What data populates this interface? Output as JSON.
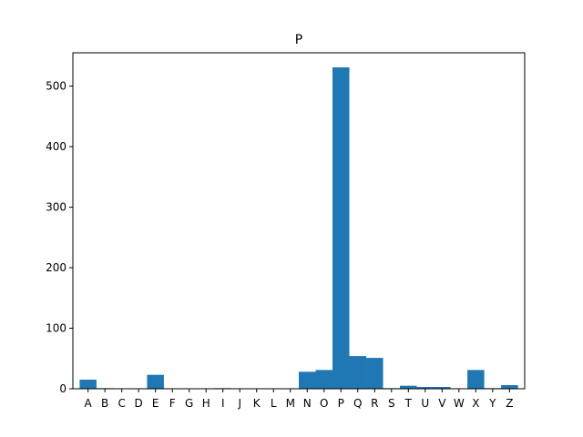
{
  "chart_data": {
    "type": "bar",
    "title": "P",
    "xlabel": "",
    "ylabel": "",
    "categories": [
      "A",
      "B",
      "C",
      "D",
      "E",
      "F",
      "G",
      "H",
      "I",
      "J",
      "K",
      "L",
      "M",
      "N",
      "O",
      "P",
      "Q",
      "R",
      "S",
      "T",
      "U",
      "V",
      "W",
      "X",
      "Y",
      "Z"
    ],
    "values": [
      15,
      1,
      0,
      0,
      23,
      0,
      0,
      0,
      1,
      0,
      0,
      0,
      0,
      28,
      31,
      531,
      54,
      51,
      1,
      5,
      3,
      3,
      0,
      31,
      1,
      6
    ],
    "ylim": [
      0,
      555
    ],
    "yticks": [
      0,
      100,
      200,
      300,
      400,
      500
    ],
    "grid": false,
    "bar_color": "#1f77b4"
  }
}
